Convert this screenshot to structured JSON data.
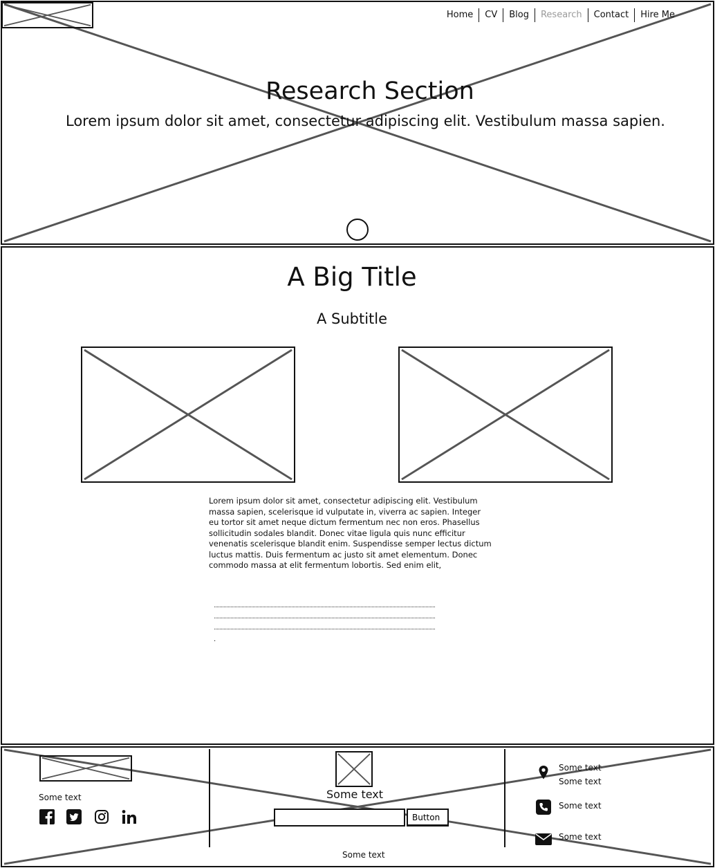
{
  "nav": {
    "items": [
      "Home",
      "CV",
      "Blog",
      "Research",
      "Contact",
      "Hire Me"
    ],
    "active": "Research"
  },
  "hero": {
    "title": "Research Section",
    "subtitle": "Lorem ipsum dolor sit amet, consectetur adipiscing elit. Vestibulum massa sapien."
  },
  "main": {
    "title": "A Big Title",
    "subtitle": "A Subtitle",
    "body": "Lorem ipsum dolor sit amet, consectetur adipiscing elit. Vestibulum massa sapien, scelerisque id vulputate in, viverra ac sapien. Integer eu tortor sit amet neque dictum fermentum nec non eros. Phasellus sollicitudin sodales blandit. Donec vitae ligula quis nunc efficitur venenatis scelerisque blandit enim. Suspendisse semper lectus dictum luctus mattis. Duis fermentum ac justo sit amet elementum. Donec commodo massa at elit fermentum lobortis. Sed enim elit,",
    "dot_tail": "."
  },
  "footer": {
    "left_text": "Some text",
    "social": [
      "facebook-icon",
      "twitter-icon",
      "instagram-icon",
      "linkedin-icon"
    ],
    "center_text": "Some text",
    "input_value": "",
    "button_label": "Button",
    "contact": {
      "location_line1": "Some text",
      "location_line2": "Some text",
      "phone": "Some text",
      "email": "Some text"
    },
    "copyright": "Some text"
  },
  "colors": {
    "line": "#111111",
    "cross": "#555555",
    "nav_active": "#9a9a9a"
  }
}
